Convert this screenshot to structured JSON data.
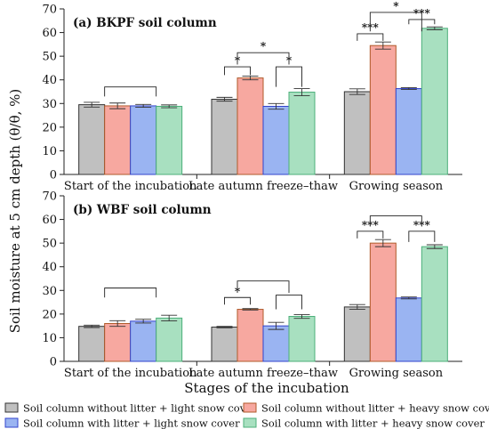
{
  "colors": {
    "light_no_litter": "#c0c0c0",
    "heavy_no_litter": "#f7a8a0",
    "light_litter": "#9ab4f2",
    "heavy_litter": "#a8e0c0",
    "light_no_litter_edge": "#333333",
    "heavy_no_litter_edge": "#b05a2a",
    "light_litter_edge": "#3344cc",
    "heavy_litter_edge": "#4caf7a"
  },
  "ylabel": "Soil moisture at 5 cm depth (θ/θ, %)",
  "xlabel": "Stages of the incubation",
  "legend": {
    "position": "bottom",
    "entries": [
      "Soil column without litter + light snow cover",
      "Soil column without litter + heavy snow cover",
      "Soil column with litter + light snow cover",
      "Soil column with litter + heavy snow cover"
    ]
  },
  "chart_data": [
    {
      "type": "bar",
      "title": "(a) BKPF soil column",
      "categories": [
        "Start of the incubation",
        "Late autumn freeze–thaw",
        "Growing season"
      ],
      "ylim": [
        0,
        70
      ],
      "yticks": [
        "0",
        "10",
        "20",
        "30",
        "40",
        "50",
        "60",
        "70"
      ],
      "series": [
        {
          "name": "Soil column without litter + light snow cover",
          "values": [
            29.5,
            31.8,
            35.0
          ],
          "errors": [
            1.0,
            0.8,
            1.2
          ]
        },
        {
          "name": "Soil column without litter + heavy snow cover",
          "values": [
            29.0,
            40.8,
            54.5
          ],
          "errors": [
            1.2,
            0.8,
            1.5
          ]
        },
        {
          "name": "Soil column with litter + light snow cover",
          "values": [
            29.0,
            28.8,
            36.3
          ],
          "errors": [
            0.6,
            1.2,
            0.4
          ]
        },
        {
          "name": "Soil column with litter + heavy snow cover",
          "values": [
            28.8,
            34.8,
            61.8
          ],
          "errors": [
            0.6,
            1.5,
            0.6
          ]
        }
      ],
      "brackets": [
        {
          "c": 0,
          "left": [
            0,
            1
          ],
          "right": [
            2,
            3
          ],
          "y1": 33.0,
          "y2": 37.0,
          "label": ""
        },
        {
          "c": 1,
          "left": [
            0
          ],
          "right": [
            1
          ],
          "y1": 42.0,
          "y2": 45.5,
          "label": "*"
        },
        {
          "c": 1,
          "left": [
            2
          ],
          "right": [
            3
          ],
          "y1": 37.0,
          "y2": 45.5,
          "label": "*"
        },
        {
          "c": 1,
          "left": [
            0,
            1
          ],
          "right": [
            2,
            3
          ],
          "y1": 46.5,
          "y2": 51.5,
          "label": "*"
        },
        {
          "c": 2,
          "left": [
            0
          ],
          "right": [
            1
          ],
          "y1": 56.5,
          "y2": 59.5,
          "label": "***"
        },
        {
          "c": 2,
          "left": [
            2
          ],
          "right": [
            3
          ],
          "y1": 63.5,
          "y2": 65.5,
          "label": "***"
        },
        {
          "c": 2,
          "left": [
            0,
            1
          ],
          "right": [
            2,
            3
          ],
          "y1": 60.5,
          "y2": 68.5,
          "label": "*"
        }
      ]
    },
    {
      "type": "bar",
      "title": "(b) WBF soil column",
      "categories": [
        "Start of the incubation",
        "Late autumn freeze–thaw",
        "Growing season"
      ],
      "ylim": [
        0,
        70
      ],
      "yticks": [
        "0",
        "10",
        "20",
        "30",
        "40",
        "50",
        "60",
        "70"
      ],
      "series": [
        {
          "name": "Soil column without litter + light snow cover",
          "values": [
            14.8,
            14.5,
            23.0
          ],
          "errors": [
            0.5,
            0.3,
            1.0
          ]
        },
        {
          "name": "Soil column without litter + heavy snow cover",
          "values": [
            16.0,
            22.0,
            50.0
          ],
          "errors": [
            1.2,
            0.3,
            1.5
          ]
        },
        {
          "name": "Soil column with litter + light snow cover",
          "values": [
            17.0,
            15.0,
            26.8
          ],
          "errors": [
            0.8,
            1.5,
            0.4
          ]
        },
        {
          "name": "Soil column with litter + heavy snow cover",
          "values": [
            18.3,
            19.0,
            48.5
          ],
          "errors": [
            1.2,
            0.8,
            0.8
          ]
        }
      ],
      "brackets": [
        {
          "c": 0,
          "left": [
            0,
            1
          ],
          "right": [
            2,
            3
          ],
          "y1": 27.0,
          "y2": 31.0,
          "label": ""
        },
        {
          "c": 1,
          "left": [
            0
          ],
          "right": [
            1
          ],
          "y1": 24.0,
          "y2": 27.0,
          "label": "*"
        },
        {
          "c": 1,
          "left": [
            2
          ],
          "right": [
            3
          ],
          "y1": 22.0,
          "y2": 28.0,
          "label": ""
        },
        {
          "c": 1,
          "left": [
            0,
            1
          ],
          "right": [
            2,
            3
          ],
          "y1": 29.0,
          "y2": 34.0,
          "label": ""
        },
        {
          "c": 2,
          "left": [
            0
          ],
          "right": [
            1
          ],
          "y1": 52.0,
          "y2": 55.0,
          "label": "***"
        },
        {
          "c": 2,
          "left": [
            2
          ],
          "right": [
            3
          ],
          "y1": 50.5,
          "y2": 55.0,
          "label": "***"
        },
        {
          "c": 2,
          "left": [
            0,
            1
          ],
          "right": [
            2,
            3
          ],
          "y1": 57.0,
          "y2": 61.5,
          "label": ""
        }
      ]
    }
  ]
}
